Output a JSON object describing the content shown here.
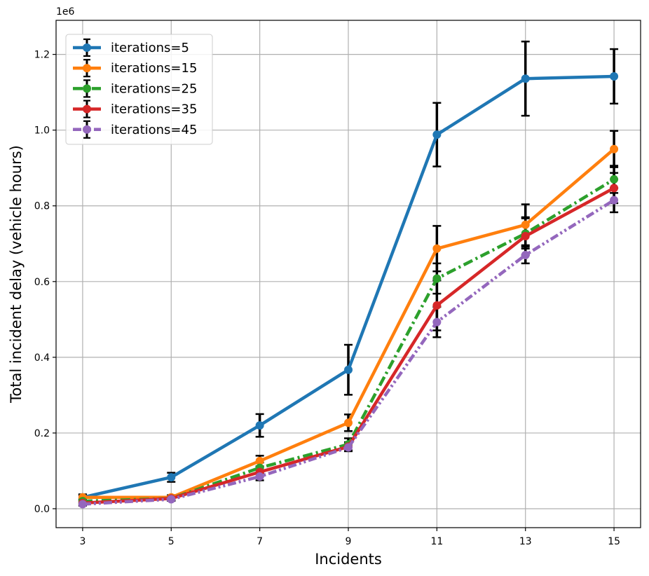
{
  "chart_data": {
    "type": "line",
    "x": [
      3,
      5,
      7,
      9,
      11,
      13,
      15
    ],
    "xticks": [
      "3",
      "5",
      "7",
      "9",
      "11",
      "13",
      "15"
    ],
    "xlim": [
      2.4,
      15.6
    ],
    "xlabel": "Incidents",
    "ylabel": "Total incident delay (vehicle hours)",
    "offset_text": "1e6",
    "ylim": [
      -0.05,
      1.29
    ],
    "yticks": [
      "0.0",
      "0.2",
      "0.4",
      "0.6",
      "0.8",
      "1.0",
      "1.2"
    ],
    "ytick_values": [
      0.0,
      0.2,
      0.4,
      0.6,
      0.8,
      1.0,
      1.2
    ],
    "grid": true,
    "legend_position": "top-left",
    "series": [
      {
        "name": "iterations=5",
        "color": "#1f77b4",
        "dash": "solid",
        "values": [
          0.03,
          0.083,
          0.22,
          0.367,
          0.988,
          1.136,
          1.142
        ],
        "err": [
          0.008,
          0.012,
          0.03,
          0.066,
          0.084,
          0.098,
          0.072
        ]
      },
      {
        "name": "iterations=15",
        "color": "#ff7f0e",
        "dash": "solid",
        "values": [
          0.03,
          0.03,
          0.126,
          0.227,
          0.687,
          0.75,
          0.95
        ],
        "err": [
          0.006,
          0.006,
          0.014,
          0.022,
          0.06,
          0.054,
          0.048
        ]
      },
      {
        "name": "iterations=25",
        "color": "#2ca02c",
        "dash": "dashdot",
        "values": [
          0.02,
          0.027,
          0.108,
          0.17,
          0.608,
          0.727,
          0.87
        ],
        "err": [
          0.006,
          0.006,
          0.014,
          0.016,
          0.04,
          0.04,
          0.036
        ]
      },
      {
        "name": "iterations=35",
        "color": "#d62728",
        "dash": "solid",
        "values": [
          0.015,
          0.027,
          0.097,
          0.164,
          0.537,
          0.72,
          0.847
        ],
        "err": [
          0.005,
          0.005,
          0.012,
          0.012,
          0.066,
          0.05,
          0.04
        ]
      },
      {
        "name": "iterations=45",
        "color": "#9467bd",
        "dash": "dashdotdot",
        "values": [
          0.012,
          0.025,
          0.085,
          0.162,
          0.493,
          0.67,
          0.815
        ],
        "err": [
          0.004,
          0.004,
          0.01,
          0.01,
          0.04,
          0.022,
          0.032
        ]
      }
    ]
  }
}
